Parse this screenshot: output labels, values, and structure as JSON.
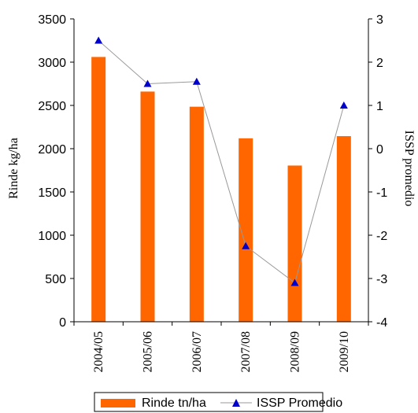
{
  "chart_data": {
    "type": "bar",
    "categories": [
      "2004/05",
      "2005/06",
      "2006/07",
      "2007/08",
      "2008/09",
      "2009/10"
    ],
    "series": [
      {
        "name": "Rinde tn/ha",
        "type": "bar",
        "axis": "left",
        "values": [
          3060,
          2660,
          2485,
          2120,
          1805,
          2145
        ],
        "color": "#FF6600"
      },
      {
        "name": "ISSP Promedio",
        "type": "line",
        "axis": "right",
        "values": [
          2.5,
          1.5,
          1.55,
          -2.25,
          -3.1,
          1.0
        ],
        "color": "#0000CC",
        "line_color": "#999999",
        "marker": "triangle"
      }
    ],
    "ylabel_left": "Rinde kg/ha",
    "ylabel_right": "ISSP promedio",
    "ylim_left": [
      0,
      3500
    ],
    "yticks_left": [
      "0",
      "500",
      "1000",
      "1500",
      "2000",
      "2500",
      "3000",
      "3500"
    ],
    "ylim_right": [
      -4,
      3
    ],
    "yticks_right": [
      "-4",
      "-3",
      "-2",
      "-1",
      "0",
      "1",
      "2",
      "3"
    ],
    "grid": false,
    "legend_position": "bottom"
  }
}
